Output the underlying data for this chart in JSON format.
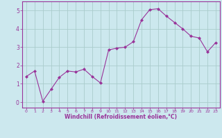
{
  "x": [
    0,
    1,
    2,
    3,
    4,
    5,
    6,
    7,
    8,
    9,
    10,
    11,
    12,
    13,
    14,
    15,
    16,
    17,
    18,
    19,
    20,
    21,
    22,
    23
  ],
  "y": [
    1.4,
    1.7,
    0.05,
    0.7,
    1.35,
    1.7,
    1.65,
    1.8,
    1.4,
    1.05,
    2.85,
    2.95,
    3.0,
    3.3,
    4.5,
    5.05,
    5.1,
    4.7,
    4.35,
    4.0,
    3.6,
    3.5,
    2.75,
    3.25
  ],
  "line_color": "#993399",
  "marker": "D",
  "marker_size": 2.0,
  "bg_color": "#cce8ee",
  "grid_color": "#aacccc",
  "xlabel": "Windchill (Refroidissement éolien,°C)",
  "xlabel_color": "#993399",
  "tick_color": "#993399",
  "spine_color": "#993399",
  "ylim": [
    -0.3,
    5.5
  ],
  "xlim": [
    -0.5,
    23.5
  ],
  "yticks": [
    0,
    1,
    2,
    3,
    4,
    5
  ],
  "xticks": [
    0,
    1,
    2,
    3,
    4,
    5,
    6,
    7,
    8,
    9,
    10,
    11,
    12,
    13,
    14,
    15,
    16,
    17,
    18,
    19,
    20,
    21,
    22,
    23
  ]
}
